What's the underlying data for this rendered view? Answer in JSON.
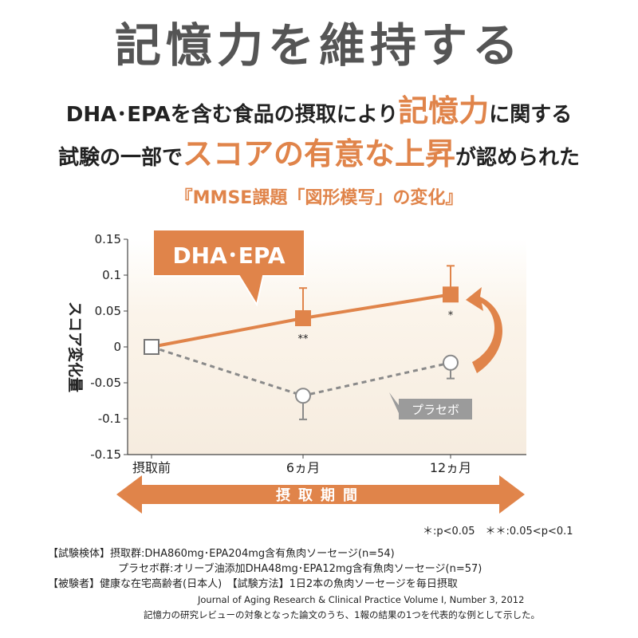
{
  "title": "記憶力を維持する",
  "headline": {
    "line1_pre": "DHA･EPAを含む食品の摂取により",
    "line1_hl": "記憶力",
    "line1_post": "に関する",
    "line2_pre": "試験の一部で",
    "line2_hl": "スコアの有意な上昇",
    "line2_post": "が認められた"
  },
  "colors": {
    "accent": "#e0844a",
    "placebo": "#8a8a8a",
    "bg_band": "#fbf4ea"
  },
  "chart_data": {
    "type": "line",
    "title": "『MMSE課題「図形模写」の変化』",
    "ylabel": "スコア変化量",
    "xlabel": "摂取期間",
    "categories": [
      "摂取前",
      "6ヵ月",
      "12ヵ月"
    ],
    "ylim": [
      -0.15,
      0.15
    ],
    "yticks": [
      "0.15",
      "0.1",
      "0.05",
      "0",
      "-0.05",
      "-0.1",
      "-0.15"
    ],
    "series": [
      {
        "name": "DHA･EPA",
        "values": [
          0,
          0.04,
          0.073
        ],
        "err": [
          0,
          0.042,
          0.04
        ],
        "marks": [
          "",
          "**",
          "*"
        ],
        "style": "solid-square"
      },
      {
        "name": "プラセボ",
        "values": [
          0,
          -0.068,
          -0.022
        ],
        "err": [
          0,
          0.033,
          0.022
        ],
        "marks": [
          "",
          "",
          ""
        ],
        "style": "dashed-circle"
      }
    ],
    "significance": "＊:p<0.05　＊＊:0.05<p<0.1"
  },
  "spec": {
    "line1": "【試験検体】摂取群:DHA860mg･EPA204mg含有魚肉ソーセージ(n=54)",
    "line2": "プラセボ群:オリーブ油添加DHA48mg･EPA12mg含有魚肉ソーセージ(n=57)",
    "line3": "【被験者】健康な在宅高齢者(日本人)　【試験方法】1日2本の魚肉ソーセージを毎日摂取"
  },
  "reference": "Journal of Aging Research & Clinical Practice  Volume I, Number 3, 2012",
  "note": "記憶力の研究レビューの対象となった論文のうち、1報の結果の1つを代表的な例として示した。"
}
